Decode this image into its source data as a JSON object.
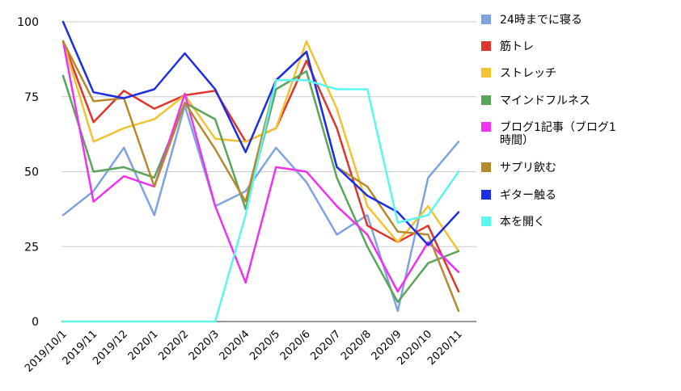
{
  "chart_data": {
    "type": "line",
    "title": "",
    "xlabel": "",
    "ylabel": "",
    "ylim": [
      0,
      100
    ],
    "yticks": [
      "0",
      "25",
      "50",
      "75",
      "100"
    ],
    "grid": true,
    "legend_position": "right",
    "categories": [
      "2019/10/1",
      "2019/11",
      "2019/12",
      "2020/1",
      "2020/2",
      "2020/3",
      "2020/4",
      "2020/5",
      "2020/6",
      "2020/7",
      "2020/8",
      "2020/9",
      "2020/10",
      "2020/11"
    ],
    "series": [
      {
        "name": "24時までに寝る",
        "color": "#7ea3de",
        "values": [
          35.5,
          43.5,
          58,
          35.5,
          72,
          38.5,
          43.5,
          58,
          46.5,
          29,
          35.5,
          3.5,
          48,
          60
        ]
      },
      {
        "name": "筋トレ",
        "color": "#e0352b",
        "values": [
          93.5,
          66.5,
          77,
          71,
          75.5,
          77,
          60,
          64.5,
          87,
          64.5,
          32,
          26.5,
          32,
          10
        ]
      },
      {
        "name": "ストレッチ",
        "color": "#f2c230",
        "values": [
          93.5,
          60,
          64.5,
          67.5,
          75.5,
          61,
          60,
          64.5,
          93.5,
          71,
          38.5,
          26.5,
          38.5,
          23.5
        ]
      },
      {
        "name": "マインドフルネス",
        "color": "#5aa55b",
        "values": [
          82,
          50,
          51.5,
          48,
          73,
          67.5,
          37.5,
          77.5,
          83.5,
          48,
          25,
          6.5,
          19.5,
          23.5
        ]
      },
      {
        "name": "ブログ1記事（ブログ1時間）",
        "color": "#ee32ee",
        "values": [
          93.5,
          40,
          48.5,
          45,
          76,
          38.5,
          13,
          51.5,
          50,
          38.5,
          29,
          10,
          26.5,
          16.5
        ]
      },
      {
        "name": "サプリ飲む",
        "color": "#b68a2c",
        "values": [
          93.5,
          73.5,
          74.5,
          45,
          73,
          57.5,
          40,
          80.5,
          90,
          51.5,
          45,
          30,
          29,
          3.5
        ]
      },
      {
        "name": "ギター触る",
        "color": "#1a2ee6",
        "values": [
          100,
          76.5,
          74.5,
          77.5,
          89.5,
          77.5,
          56.5,
          80.5,
          90,
          51.5,
          42,
          36.5,
          25.5,
          36.5
        ]
      },
      {
        "name": "本を開く",
        "color": "#5cf5f0",
        "values": [
          0,
          0,
          0,
          0,
          0,
          0,
          35.5,
          80.5,
          80.5,
          77.5,
          77.5,
          33,
          35.5,
          50
        ]
      }
    ]
  }
}
